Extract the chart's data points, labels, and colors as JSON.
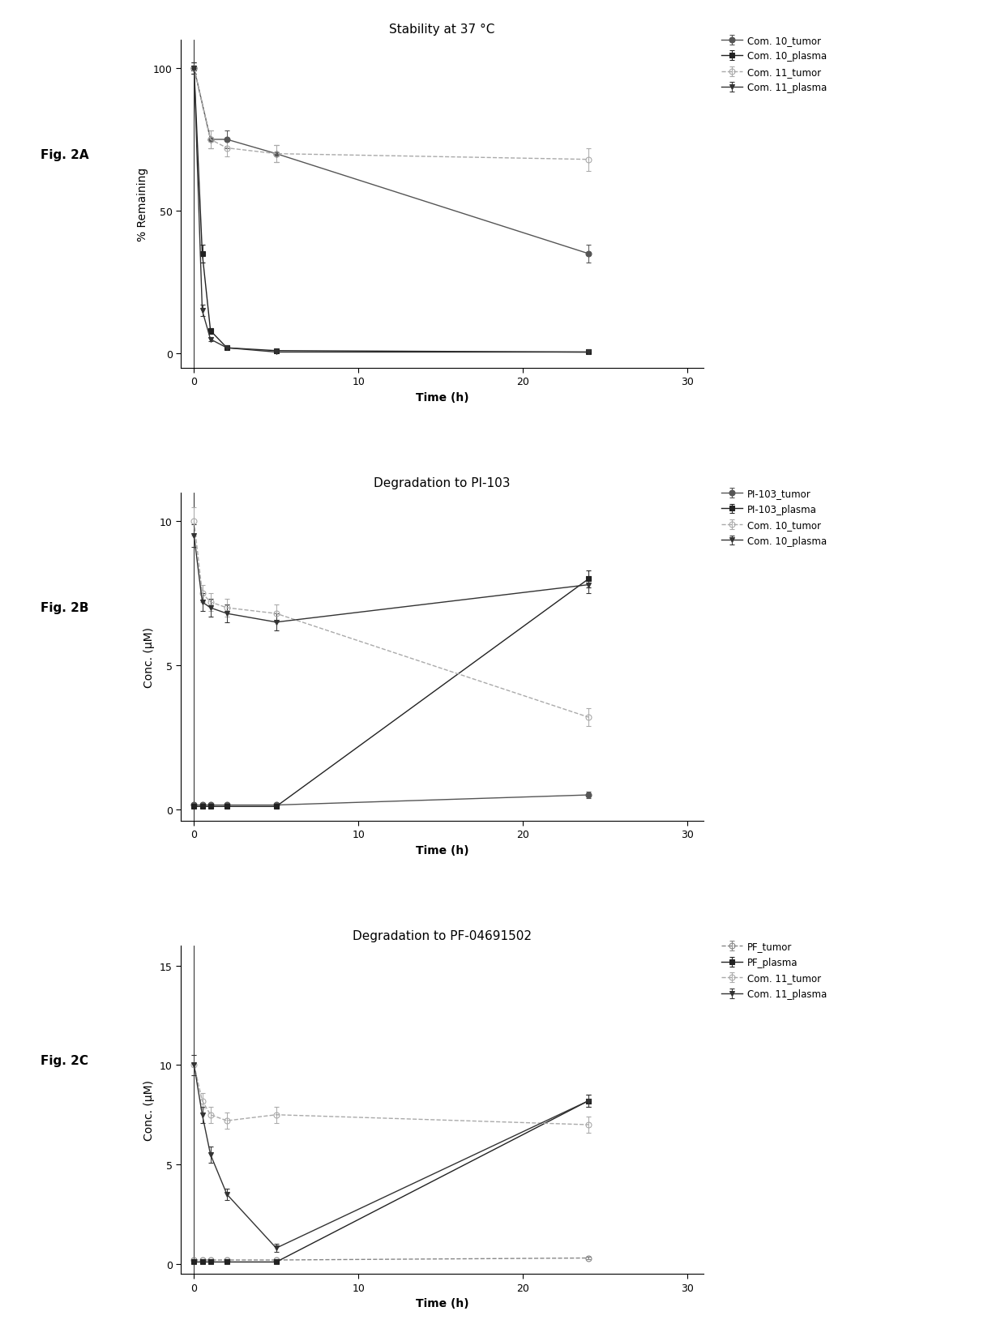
{
  "fig2A": {
    "title": "Stability at 37 °C",
    "xlabel": "Time (h)",
    "ylabel": "% Remaining",
    "ylim": [
      -5,
      110
    ],
    "xlim": [
      -0.8,
      31
    ],
    "yticks": [
      0,
      50,
      100
    ],
    "xticks": [
      0,
      10,
      20,
      30
    ],
    "series": [
      {
        "label": "Com. 10_tumor",
        "x": [
          0,
          1,
          2,
          5,
          24
        ],
        "y": [
          100,
          75,
          75,
          70,
          35
        ],
        "yerr": [
          2,
          3,
          3,
          3,
          3
        ],
        "color": "#555555",
        "marker": "o",
        "linestyle": "-",
        "markersize": 5,
        "linewidth": 1.0,
        "fillstyle": "full"
      },
      {
        "label": "Com. 10_plasma",
        "x": [
          0,
          0.5,
          1,
          2,
          5,
          24
        ],
        "y": [
          100,
          35,
          8,
          2,
          1,
          0.5
        ],
        "yerr": [
          2,
          3,
          1,
          0.3,
          0.2,
          0.2
        ],
        "color": "#222222",
        "marker": "s",
        "linestyle": "-",
        "markersize": 5,
        "linewidth": 1.0,
        "fillstyle": "full"
      },
      {
        "label": "Com. 11_tumor",
        "x": [
          0,
          1,
          2,
          5,
          24
        ],
        "y": [
          100,
          75,
          72,
          70,
          68
        ],
        "yerr": [
          2,
          3,
          3,
          3,
          4
        ],
        "color": "#aaaaaa",
        "marker": "o",
        "linestyle": "--",
        "markersize": 5,
        "linewidth": 1.0,
        "fillstyle": "none"
      },
      {
        "label": "Com. 11_plasma",
        "x": [
          0,
          0.5,
          1,
          2,
          5,
          24
        ],
        "y": [
          100,
          15,
          5,
          2,
          0.5,
          0.5
        ],
        "yerr": [
          2,
          2,
          0.8,
          0.3,
          0.2,
          0.2
        ],
        "color": "#333333",
        "marker": "v",
        "linestyle": "-",
        "markersize": 5,
        "linewidth": 1.0,
        "fillstyle": "full"
      }
    ]
  },
  "fig2B": {
    "title": "Degradation to PI-103",
    "xlabel": "Time (h)",
    "ylabel": "Conc. (μM)",
    "ylim": [
      -0.4,
      11
    ],
    "xlim": [
      -0.8,
      31
    ],
    "yticks": [
      0,
      5,
      10
    ],
    "xticks": [
      0,
      10,
      20,
      30
    ],
    "series": [
      {
        "label": "PI-103_tumor",
        "x": [
          0,
          0.5,
          1,
          2,
          5,
          24
        ],
        "y": [
          0.15,
          0.15,
          0.15,
          0.15,
          0.15,
          0.5
        ],
        "yerr": [
          0.05,
          0.05,
          0.05,
          0.05,
          0.05,
          0.1
        ],
        "color": "#555555",
        "marker": "o",
        "linestyle": "-",
        "markersize": 5,
        "linewidth": 1.0,
        "fillstyle": "full"
      },
      {
        "label": "PI-103_plasma",
        "x": [
          0,
          0.5,
          1,
          2,
          5,
          24
        ],
        "y": [
          0.1,
          0.1,
          0.1,
          0.1,
          0.1,
          8.0
        ],
        "yerr": [
          0.03,
          0.03,
          0.03,
          0.03,
          0.03,
          0.3
        ],
        "color": "#222222",
        "marker": "s",
        "linestyle": "-",
        "markersize": 5,
        "linewidth": 1.0,
        "fillstyle": "full"
      },
      {
        "label": "Com. 10_tumor",
        "x": [
          0,
          0.5,
          1,
          2,
          5,
          24
        ],
        "y": [
          10.0,
          7.5,
          7.2,
          7.0,
          6.8,
          3.2
        ],
        "yerr": [
          0.5,
          0.3,
          0.3,
          0.3,
          0.3,
          0.3
        ],
        "color": "#aaaaaa",
        "marker": "o",
        "linestyle": "--",
        "markersize": 5,
        "linewidth": 1.0,
        "fillstyle": "none"
      },
      {
        "label": "Com. 10_plasma",
        "x": [
          0,
          0.5,
          1,
          2,
          5,
          24
        ],
        "y": [
          9.5,
          7.2,
          7.0,
          6.8,
          6.5,
          7.8
        ],
        "yerr": [
          0.4,
          0.3,
          0.3,
          0.3,
          0.3,
          0.3
        ],
        "color": "#333333",
        "marker": "v",
        "linestyle": "-",
        "markersize": 5,
        "linewidth": 1.0,
        "fillstyle": "full"
      }
    ]
  },
  "fig2C": {
    "title": "Degradation to PF-04691502",
    "xlabel": "Time (h)",
    "ylabel": "Conc. (μM)",
    "ylim": [
      -0.5,
      16
    ],
    "xlim": [
      -0.8,
      31
    ],
    "yticks": [
      0,
      5,
      10,
      15
    ],
    "xticks": [
      0,
      10,
      20,
      30
    ],
    "series": [
      {
        "label": "PF_tumor",
        "x": [
          0,
          0.5,
          1,
          2,
          5,
          24
        ],
        "y": [
          0.2,
          0.2,
          0.2,
          0.2,
          0.2,
          0.3
        ],
        "yerr": [
          0.05,
          0.05,
          0.05,
          0.05,
          0.05,
          0.05
        ],
        "color": "#888888",
        "marker": "o",
        "linestyle": "--",
        "markersize": 5,
        "linewidth": 1.0,
        "fillstyle": "none"
      },
      {
        "label": "PF_plasma",
        "x": [
          0,
          0.5,
          1,
          2,
          5,
          24
        ],
        "y": [
          0.1,
          0.1,
          0.1,
          0.1,
          0.1,
          8.2
        ],
        "yerr": [
          0.03,
          0.03,
          0.03,
          0.03,
          0.03,
          0.3
        ],
        "color": "#222222",
        "marker": "s",
        "linestyle": "-",
        "markersize": 5,
        "linewidth": 1.0,
        "fillstyle": "full"
      },
      {
        "label": "Com. 11_tumor",
        "x": [
          0,
          0.5,
          1,
          2,
          5,
          24
        ],
        "y": [
          10.0,
          8.2,
          7.5,
          7.2,
          7.5,
          7.0
        ],
        "yerr": [
          0.5,
          0.4,
          0.4,
          0.4,
          0.4,
          0.4
        ],
        "color": "#aaaaaa",
        "marker": "o",
        "linestyle": "--",
        "markersize": 5,
        "linewidth": 1.0,
        "fillstyle": "none"
      },
      {
        "label": "Com. 11_plasma",
        "x": [
          0,
          0.5,
          1,
          2,
          5,
          24
        ],
        "y": [
          10.0,
          7.5,
          5.5,
          3.5,
          0.8,
          8.2
        ],
        "yerr": [
          0.5,
          0.4,
          0.4,
          0.3,
          0.2,
          0.3
        ],
        "color": "#333333",
        "marker": "v",
        "linestyle": "-",
        "markersize": 5,
        "linewidth": 1.0,
        "fillstyle": "full"
      }
    ]
  },
  "fig_labels": [
    "Fig. 2A",
    "Fig. 2B",
    "Fig. 2C"
  ],
  "background_color": "#ffffff",
  "legend_fontsize": 8.5,
  "axis_fontsize": 10,
  "title_fontsize": 11,
  "tick_fontsize": 9,
  "label_fontsize": 11
}
